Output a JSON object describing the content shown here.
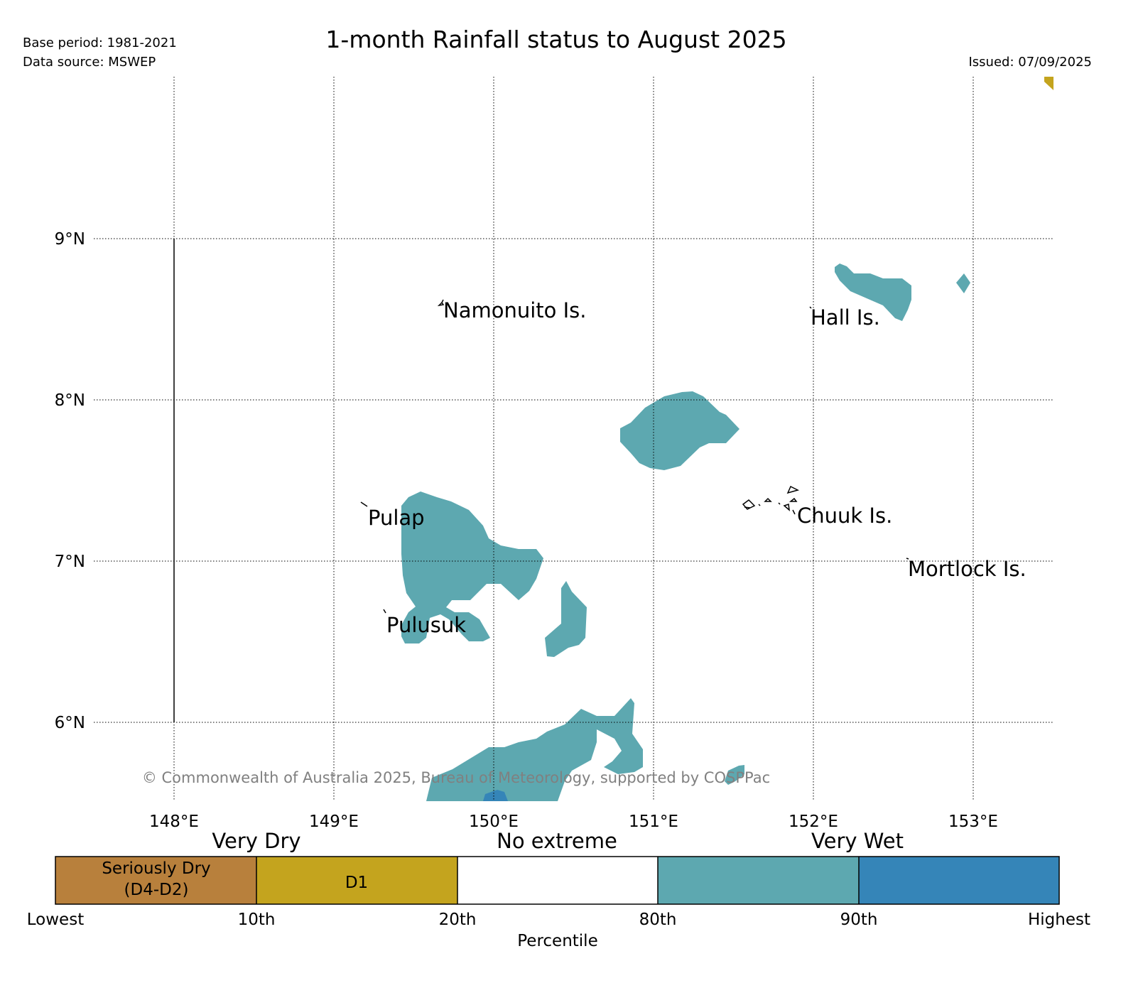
{
  "header": {
    "title": "1-month Rainfall status to August 2025",
    "base_period": "Base period: 1981-2021",
    "data_source": "Data source: MSWEP",
    "issued": "Issued: 07/09/2025"
  },
  "map": {
    "lon_labels": [
      "148°E",
      "149°E",
      "150°E",
      "151°E",
      "152°E",
      "153°E"
    ],
    "lat_labels": [
      "9°N",
      "8°N",
      "7°N",
      "6°N"
    ],
    "places": [
      "Namonuito Is.",
      "Hall Is.",
      "Pulap",
      "Chuuk Is.",
      "Mortlock Is.",
      "Pulusuk"
    ],
    "copyright": "© Commonwealth of Australia 2025, Bureau of Meteorology, supported by COSPPac"
  },
  "legend": {
    "groups": [
      "Very Dry",
      "No extreme",
      "Very Wet"
    ],
    "categories": [
      {
        "label_line1": "Seriously Dry",
        "label_line2": "(D4-D2)",
        "color": "#b8803c"
      },
      {
        "label_line1": "D1",
        "label_line2": "",
        "color": "#c4a41e"
      },
      {
        "label_line1": "",
        "label_line2": "",
        "color": "#ffffff"
      },
      {
        "label_line1": "",
        "label_line2": "",
        "color": "#5da8b0"
      },
      {
        "label_line1": "",
        "label_line2": "",
        "color": "#3585b8"
      }
    ],
    "ticks": [
      "Lowest",
      "10th",
      "20th",
      "80th",
      "90th",
      "Highest"
    ],
    "axis_label": "Percentile"
  }
}
